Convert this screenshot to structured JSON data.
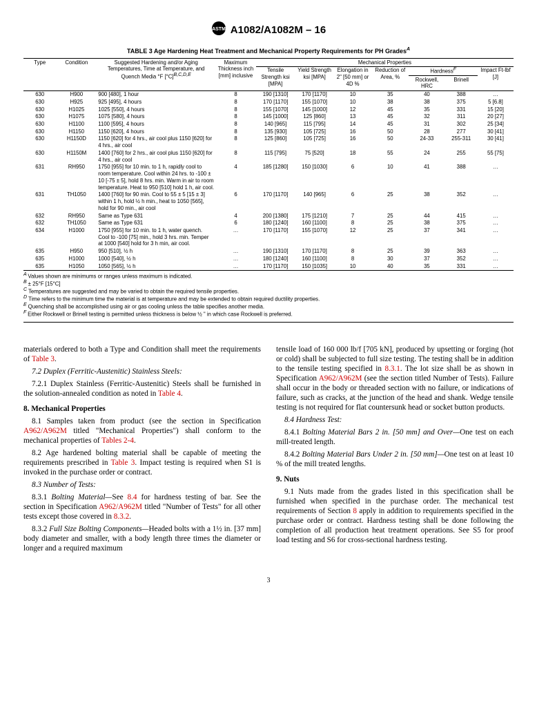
{
  "header": {
    "doc_id": "A1082/A1082M – 16"
  },
  "table": {
    "caption": "TABLE 3 Age Hardening Heat Treatment and Mechanical Property Requirements for PH Grades",
    "caption_sup": "A",
    "col_headers": {
      "mech_props": "Mechanical Properties",
      "type": "Type",
      "condition": "Condition",
      "suggested": "Suggested Hardening and/or Aging Temperatures, Time at Temperature, and Quench Media °F [°C]",
      "suggested_sup": "B,C,D,E",
      "max_thick": "Maximum Thickness inch [mm] inclusive",
      "tensile": "Tensile Strength ksi [MPA]",
      "yield": "Yield Strength ksi [MPA]",
      "elong": "Elongation in 2\" [50 mm] or 4D %",
      "reduction": "Reduction of Area, %",
      "hardness": "Hardness",
      "hardness_sup": "F",
      "rockwell": "Rockwell, HRC",
      "brinell": "Brinell",
      "impact": "Impact Ft-lbf [J]"
    },
    "rows": [
      {
        "type": "630",
        "cond": "H900",
        "treat": "900 [480], 1 hour",
        "thick": "8",
        "ts": "190 [1310]",
        "ys": "170 [1170]",
        "el": "10",
        "ra": "35",
        "hrc": "40",
        "bhn": "388",
        "imp": "…"
      },
      {
        "type": "630",
        "cond": "H925",
        "treat": "925 [495], 4 hours",
        "thick": "8",
        "ts": "170 [1170]",
        "ys": "155 [1070]",
        "el": "10",
        "ra": "38",
        "hrc": "38",
        "bhn": "375",
        "imp": "5 [6.8]"
      },
      {
        "type": "630",
        "cond": "H1025",
        "treat": "1025 [550], 4 hours",
        "thick": "8",
        "ts": "155 [1070]",
        "ys": "145 [1000]",
        "el": "12",
        "ra": "45",
        "hrc": "35",
        "bhn": "331",
        "imp": "15 [20]"
      },
      {
        "type": "630",
        "cond": "H1075",
        "treat": "1075 [580], 4 hours",
        "thick": "8",
        "ts": "145 [1000]",
        "ys": "125 [860]",
        "el": "13",
        "ra": "45",
        "hrc": "32",
        "bhn": "311",
        "imp": "20 [27]"
      },
      {
        "type": "630",
        "cond": "H1100",
        "treat": "1100 [595], 4 hours",
        "thick": "8",
        "ts": "140 [965]",
        "ys": "115 [795]",
        "el": "14",
        "ra": "45",
        "hrc": "31",
        "bhn": "302",
        "imp": "25 [34]"
      },
      {
        "type": "630",
        "cond": "H1150",
        "treat": "1150 [620], 4 hours",
        "thick": "8",
        "ts": "135 [930]",
        "ys": "105 [725]",
        "el": "16",
        "ra": "50",
        "hrc": "28",
        "bhn": "277",
        "imp": "30 [41]"
      },
      {
        "type": "630",
        "cond": "H1150D",
        "treat": "1150 [620] for 4 hrs., air cool plus 1150 [620] for 4 hrs., air cool",
        "thick": "8",
        "ts": "125 [860]",
        "ys": "105 [725]",
        "el": "16",
        "ra": "50",
        "hrc": "24-33",
        "bhn": "255-311",
        "imp": "30 [41]"
      },
      {
        "type": "630",
        "cond": "H1150M",
        "treat": "1400 [760] for 2 hrs., air cool plus 1150 [620] for 4 hrs., air cool",
        "thick": "8",
        "ts": "115 [795]",
        "ys": "75 [520]",
        "el": "18",
        "ra": "55",
        "hrc": "24",
        "bhn": "255",
        "imp": "55 [75]"
      },
      {
        "type": "631",
        "cond": "RH950",
        "treat": "1750 [955] for 10 min. to 1 h, rapidly cool to room temperature. Cool within 24 hrs. to -100 ± 10 [-75 ± 5], hold 8 hrs. min. Warm in air to room temperature. Heat to 950 [510] hold 1 h, air cool.",
        "thick": "4",
        "ts": "185 [1280]",
        "ys": "150 [1030]",
        "el": "6",
        "ra": "10",
        "hrc": "41",
        "bhn": "388",
        "imp": "…"
      },
      {
        "type": "631",
        "cond": "TH1050",
        "treat": "1400 [760] for 90 min. Cool to 55 ± 5 [15 ± 3] within 1 h, hold ½ h min., heat to 1050 [565], hold for 90 min., air cool",
        "thick": "6",
        "ts": "170 [1170]",
        "ys": "140 [965]",
        "el": "6",
        "ra": "25",
        "hrc": "38",
        "bhn": "352",
        "imp": "…"
      },
      {
        "type": "632",
        "cond": "RH950",
        "treat": "Same as Type 631",
        "thick": "4",
        "ts": "200 [1380]",
        "ys": "175 [1210]",
        "el": "7",
        "ra": "25",
        "hrc": "44",
        "bhn": "415",
        "imp": "…"
      },
      {
        "type": "632",
        "cond": "TH1050",
        "treat": "Same as Type 631",
        "thick": "6",
        "ts": "180 [1240]",
        "ys": "160 [1100]",
        "el": "8",
        "ra": "25",
        "hrc": "38",
        "bhn": "375",
        "imp": "…"
      },
      {
        "type": "634",
        "cond": "H1000",
        "treat": "1750 [955] for 10 min. to 1 h, water quench. Cool to -100 [75] min., hold 3 hrs. min. Temper at 1000 [540] hold for 3 h min, air cool.",
        "thick": "…",
        "ts": "170 [1170]",
        "ys": "155 [1070]",
        "el": "12",
        "ra": "25",
        "hrc": "37",
        "bhn": "341",
        "imp": "…"
      },
      {
        "type": "635",
        "cond": "H950",
        "treat": "950 [510], ½ h",
        "thick": "…",
        "ts": "190 [1310]",
        "ys": "170 [1170]",
        "el": "8",
        "ra": "25",
        "hrc": "39",
        "bhn": "363",
        "imp": "…"
      },
      {
        "type": "635",
        "cond": "H1000",
        "treat": "1000 [540], ½ h",
        "thick": "…",
        "ts": "180 [1240]",
        "ys": "160 [1100]",
        "el": "8",
        "ra": "30",
        "hrc": "37",
        "bhn": "352",
        "imp": "…"
      },
      {
        "type": "635",
        "cond": "H1050",
        "treat": "1050 [565], ½ h",
        "thick": "…",
        "ts": "170 [1170]",
        "ys": "150 [1035]",
        "el": "10",
        "ra": "40",
        "hrc": "35",
        "bhn": "331",
        "imp": "…"
      }
    ],
    "notes": {
      "A": "Values shown are minimums or ranges unless maximum is indicated.",
      "B": "± 25°F [15°C]",
      "C": "Temperatures are suggested and may be varied to obtain the required tensile properties.",
      "D": "Time refers to the minimum time the material is at temperature and may be extended to obtain required ductility properties.",
      "E": "Quenching shall be accomplished using air or gas cooling unless the table specifies another media.",
      "F": "Either Rockwell or Brinell testing is permitted unless thickness is below ½ \" in which case Rockwell is preferred."
    }
  },
  "body": {
    "l1": "materials ordered to both a Type and Condition shall meet the requirements of ",
    "l1_link": "Table 3",
    "l1_end": ".",
    "s72": "7.2 Duplex (Ferritic-Austenitic) Stainless Steels:",
    "s721a": "7.2.1 Duplex Stainless (Ferritic-Austenitic) Steels shall be furnished in the solution-annealed condition as noted in ",
    "s721_link": "Table 4",
    "s721b": ".",
    "h8": "8. Mechanical Properties",
    "s81a": "8.1 Samples taken from product (see the section in Specification ",
    "s81_link1": "A962/A962M",
    "s81b": " titled \"Mechanical Properties\") shall conform to the mechanical properties of ",
    "s81_link2": "Tables 2-4",
    "s81c": ".",
    "s82a": "8.2 Age hardened bolting material shall be capable of meeting the requirements prescribed in ",
    "s82_link": "Table 3",
    "s82b": ". Impact testing is required when S1 is invoked in the purchase order or contract.",
    "s83": "8.3 Number of Tests:",
    "s831a": "8.3.1 Bolting Material—See ",
    "s831_link1": "8.4",
    "s831b": " for hardness testing of bar. See the section in Specification ",
    "s831_link2": "A962/A962M",
    "s831c": " titled \"Number of Tests\" for all other tests except those covered in ",
    "s831_link3": "8.3.2",
    "s831d": ".",
    "s832": "8.3.2 Full Size Bolting Components—Headed bolts with a 1½ in. [37 mm] body diameter and smaller, with a body length three times the diameter or longer and a required maximum",
    "r1a": "tensile load of 160 000 lb/f [705 kN], produced by upsetting or forging (hot or cold) shall be subjected to full size testing. The testing shall be in addition to the tensile testing specified in ",
    "r1_link1": "8.3.1",
    "r1b": ". The lot size shall be as shown in Specification ",
    "r1_link2": "A962/A962M",
    "r1c": " (see the section titled Number of Tests). Failure shall occur in the body or threaded section with no failure, or indications of failure, such as cracks, at the junction of the head and shank. Wedge tensile testing is not required for flat countersunk head or socket button products.",
    "s84": "8.4 Hardness Test:",
    "s841": "8.4.1 Bolting Material Bars 2 in. [50 mm] and Over—One test on each mill-treated length.",
    "s842": "8.4.2 Bolting Material Bars Under 2 in. [50 mm]—One test on at least 10 % of the mill treated lengths.",
    "h9": "9. Nuts",
    "s91a": "9.1 Nuts made from the grades listed in this specification shall be furnished when specified in the purchase order. The mechanical test requirements of Section ",
    "s91_link": "8",
    "s91b": " apply in addition to requirements specified in the purchase order or contract. Hardness testing shall be done following the completion of all production heat treatment operations. See S5 for proof load testing and S6 for cross-sectional hardness testing."
  },
  "page_number": "3"
}
